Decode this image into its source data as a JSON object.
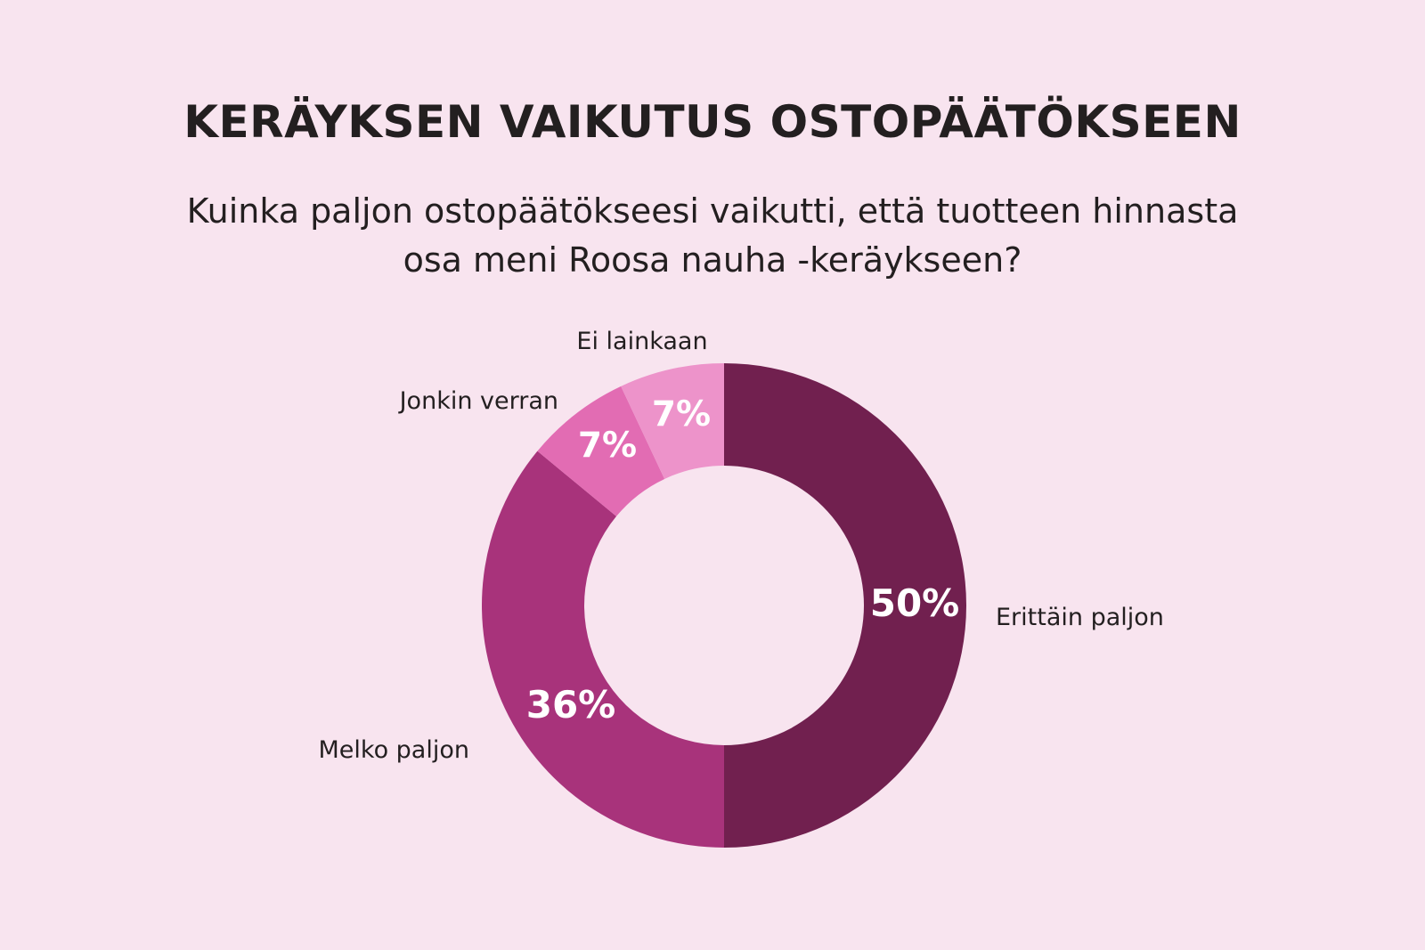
{
  "title": "KERÄYKSEN VAIKUTUS OSTOPÄÄTÖKSEEN",
  "subtitle_line1": "Kuinka paljon ostopäätökseesi vaikutti, että tuotteen hinnasta",
  "subtitle_line2": "osa meni Roosa nauha -keräykseen?",
  "chart_data": {
    "type": "pie",
    "subtype": "donut",
    "categories": [
      "Erittäin paljon",
      "Melko paljon",
      "Jonkin verran",
      "Ei lainkaan"
    ],
    "values": [
      50,
      36,
      7,
      7
    ],
    "value_labels": [
      "50%",
      "36%",
      "7%",
      "7%"
    ],
    "colors": [
      "#71204f",
      "#a8337b",
      "#e26cb3",
      "#ed93ca"
    ],
    "start": "12 o'clock, clockwise",
    "legend": "labels next to slices"
  }
}
